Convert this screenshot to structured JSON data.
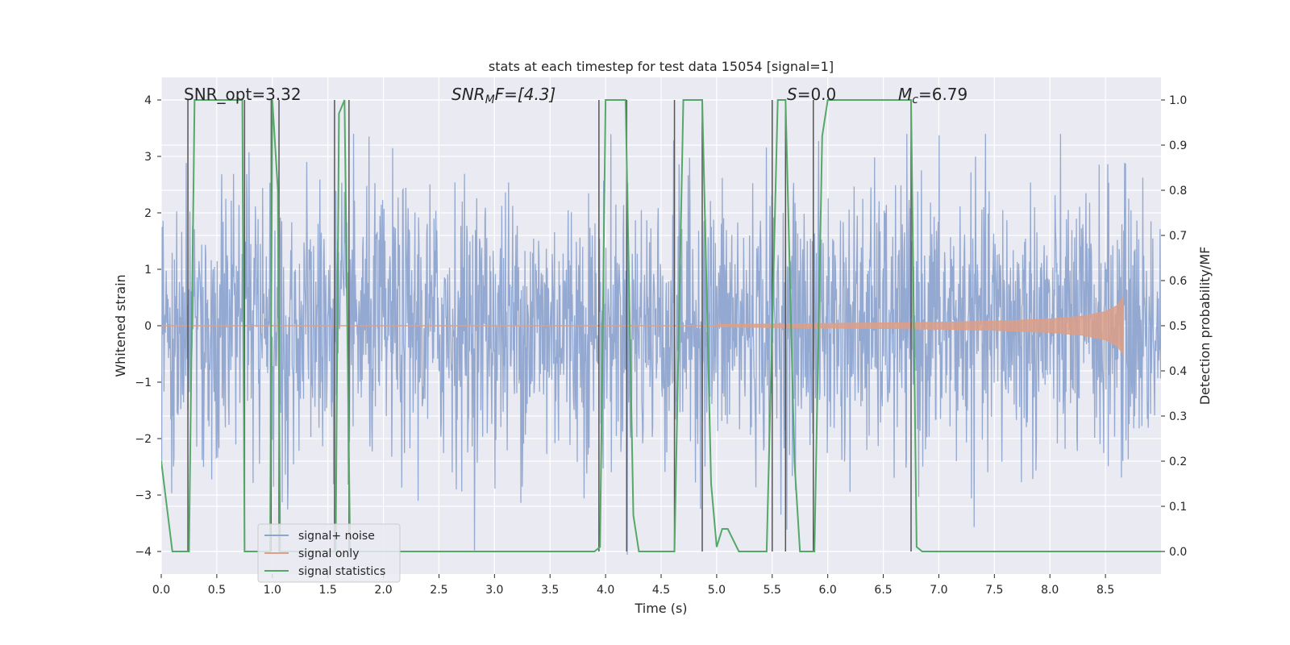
{
  "chart_data": {
    "type": "line",
    "title": "stats at each timestep for test data 15054 [signal=1]",
    "xlabel": "Time (s)",
    "ylabel_left": "Whitened strain",
    "ylabel_right": "Detection probability/MF",
    "xlim": [
      0.0,
      9.0
    ],
    "ylim_left": [
      -4.4,
      4.4
    ],
    "ylim_right": [
      -0.05,
      1.05
    ],
    "x_ticks": [
      0.0,
      0.5,
      1.0,
      1.5,
      2.0,
      2.5,
      3.0,
      3.5,
      4.0,
      4.5,
      5.0,
      5.5,
      6.0,
      6.5,
      7.0,
      7.5,
      8.0,
      8.5
    ],
    "x_tick_labels": [
      "0.0",
      "0.5",
      "1.0",
      "1.5",
      "2.0",
      "2.5",
      "3.0",
      "3.5",
      "4.0",
      "4.5",
      "5.0",
      "5.5",
      "6.0",
      "6.5",
      "7.0",
      "7.5",
      "8.0",
      "8.5"
    ],
    "y_left_ticks": [
      -4,
      -3,
      -2,
      -1,
      0,
      1,
      2,
      3,
      4
    ],
    "y_left_tick_labels": [
      "−4",
      "−3",
      "−2",
      "−1",
      "0",
      "1",
      "2",
      "3",
      "4"
    ],
    "y_right_ticks": [
      0.0,
      0.1,
      0.2,
      0.3,
      0.4,
      0.5,
      0.6,
      0.7,
      0.8,
      0.9,
      1.0
    ],
    "y_right_tick_labels": [
      "0.0",
      "0.1",
      "0.2",
      "0.3",
      "0.4",
      "0.5",
      "0.6",
      "0.7",
      "0.8",
      "0.9",
      "1.0"
    ],
    "annotations": {
      "snr_opt": "SNR_opt=3.32",
      "snr_mf_base": "SNR",
      "snr_mf_sub": "M",
      "snr_mf_rest": "F=[4.3]",
      "s_var": "S",
      "s_rest": "=0.0",
      "mc_base": "M",
      "mc_sub": "c",
      "mc_rest": "=6.79"
    },
    "legend": {
      "position": "lower-left",
      "entries": [
        "signal+ noise",
        "signal only",
        "signal statistics"
      ]
    },
    "colors": {
      "noise": "#8fa5cf",
      "signal": "#dd9f87",
      "stats": "#55a868",
      "vlines": "#555555",
      "plot_bg": "#eaeaf2",
      "grid": "#ffffff"
    },
    "noise_series": {
      "name": "signal+ noise",
      "x_range": [
        0.0,
        9.0
      ],
      "n_points": 2200,
      "amplitude_std": 1.2,
      "note": "dense whitened strain trace"
    },
    "signal_series": {
      "name": "signal only",
      "x": [
        5.0,
        5.5,
        6.0,
        6.5,
        7.0,
        7.5,
        8.0,
        8.3,
        8.5,
        8.6,
        8.66
      ],
      "envelope": [
        0.02,
        0.03,
        0.04,
        0.05,
        0.06,
        0.08,
        0.12,
        0.17,
        0.25,
        0.35,
        0.5
      ]
    },
    "stats_series": {
      "name": "signal statistics",
      "x": [
        0.0,
        0.05,
        0.1,
        0.2,
        0.25,
        0.3,
        0.73,
        0.75,
        0.8,
        0.98,
        1.0,
        1.05,
        1.07,
        1.1,
        1.57,
        1.6,
        1.65,
        1.7,
        1.72,
        3.9,
        3.95,
        4.0,
        4.18,
        4.25,
        4.3,
        4.55,
        4.62,
        4.7,
        4.87,
        4.95,
        5.0,
        5.05,
        5.1,
        5.2,
        5.3,
        5.45,
        5.55,
        5.6,
        5.62,
        5.7,
        5.75,
        5.85,
        5.88,
        5.95,
        6.0,
        6.75,
        6.8,
        6.85,
        6.9,
        7.3,
        7.35,
        9.0
      ],
      "y": [
        0.2,
        0.1,
        0.0,
        0.0,
        0.0,
        1.0,
        1.0,
        0.0,
        0.0,
        0.0,
        1.0,
        0.8,
        0.0,
        0.0,
        0.0,
        0.97,
        1.0,
        0.0,
        0.0,
        0.0,
        0.01,
        1.0,
        1.0,
        0.08,
        0.0,
        0.0,
        0.0,
        1.0,
        1.0,
        0.15,
        0.01,
        0.05,
        0.05,
        0.0,
        0.0,
        0.0,
        1.0,
        1.0,
        1.0,
        0.2,
        0.0,
        0.0,
        0.0,
        0.92,
        1.0,
        1.0,
        0.01,
        0.0,
        0.0,
        0.0,
        0.0,
        0.0
      ]
    },
    "vertical_lines": {
      "x": [
        0.24,
        0.75,
        0.99,
        1.06,
        1.56,
        1.69,
        3.94,
        4.19,
        4.62,
        4.87,
        5.5,
        5.62,
        5.87,
        6.75
      ],
      "y_range": [
        -4,
        4
      ]
    }
  }
}
